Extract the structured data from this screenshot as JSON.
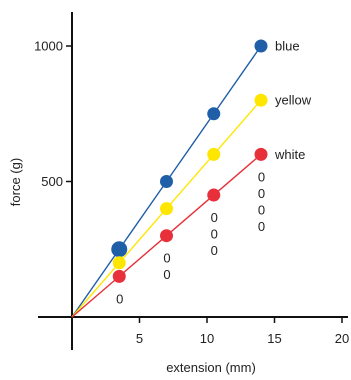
{
  "chart_data": {
    "type": "line",
    "title": "",
    "xlabel": "extension (mm)",
    "ylabel": "force (g)",
    "xlim": [
      0,
      20
    ],
    "ylim": [
      0,
      1000
    ],
    "x_ticks": [
      "5",
      "10",
      "15",
      "20"
    ],
    "y_ticks": [
      "500",
      "1000"
    ],
    "grid": false,
    "series": [
      {
        "name": "blue",
        "color": "#1f5fa8",
        "x": [
          0,
          3.5,
          7,
          10.5,
          14
        ],
        "y": [
          0,
          250,
          500,
          750,
          1000
        ]
      },
      {
        "name": "yellow",
        "color": "#ffe600",
        "x": [
          0,
          3.5,
          7,
          10.5,
          14
        ],
        "y": [
          0,
          200,
          400,
          600,
          800
        ]
      },
      {
        "name": "white",
        "color": "#e8303a",
        "x": [
          0,
          3.5,
          7,
          10.5,
          14
        ],
        "y": [
          0,
          150,
          300,
          450,
          600
        ]
      }
    ],
    "annotations": [
      {
        "x": 3.5,
        "lines": [
          "0"
        ]
      },
      {
        "x": 7,
        "lines": [
          "0",
          "0"
        ]
      },
      {
        "x": 10.5,
        "lines": [
          "0",
          "0",
          "0"
        ]
      },
      {
        "x": 14,
        "lines": [
          "0",
          "0",
          "0",
          "0"
        ]
      }
    ]
  }
}
